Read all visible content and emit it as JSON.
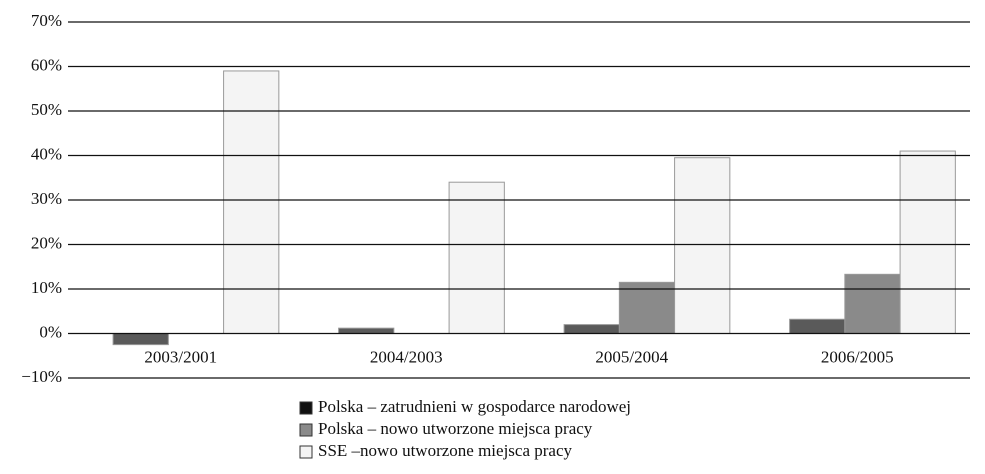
{
  "chart_data": {
    "type": "bar",
    "categories": [
      "2003/2001",
      "2004/2003",
      "2005/2004",
      "2006/2005"
    ],
    "series": [
      {
        "name": "Polska – zatrudnieni w gospodarce narodowej",
        "color": "#5a5a5a",
        "values": [
          -2.5,
          1.2,
          2.0,
          3.2
        ]
      },
      {
        "name": "Polska – nowo utworzone miejsca pracy",
        "color": "#8a8a8a",
        "values": [
          null,
          null,
          11.5,
          13.3
        ]
      },
      {
        "name": "SSE –nowo utworzone miejsca pracy",
        "color": "#f4f4f4",
        "values": [
          59,
          34,
          39.5,
          41
        ]
      }
    ],
    "ylim": [
      -10,
      70
    ],
    "yticks": [
      {
        "value": -10,
        "label": "−10%"
      },
      {
        "value": 0,
        "label": "0%"
      },
      {
        "value": 10,
        "label": "10%"
      },
      {
        "value": 20,
        "label": "20%"
      },
      {
        "value": 30,
        "label": "30%"
      },
      {
        "value": 40,
        "label": "40%"
      },
      {
        "value": 50,
        "label": "50%"
      },
      {
        "value": 60,
        "label": "60%"
      },
      {
        "value": 70,
        "label": "70%"
      }
    ],
    "grid": true
  }
}
